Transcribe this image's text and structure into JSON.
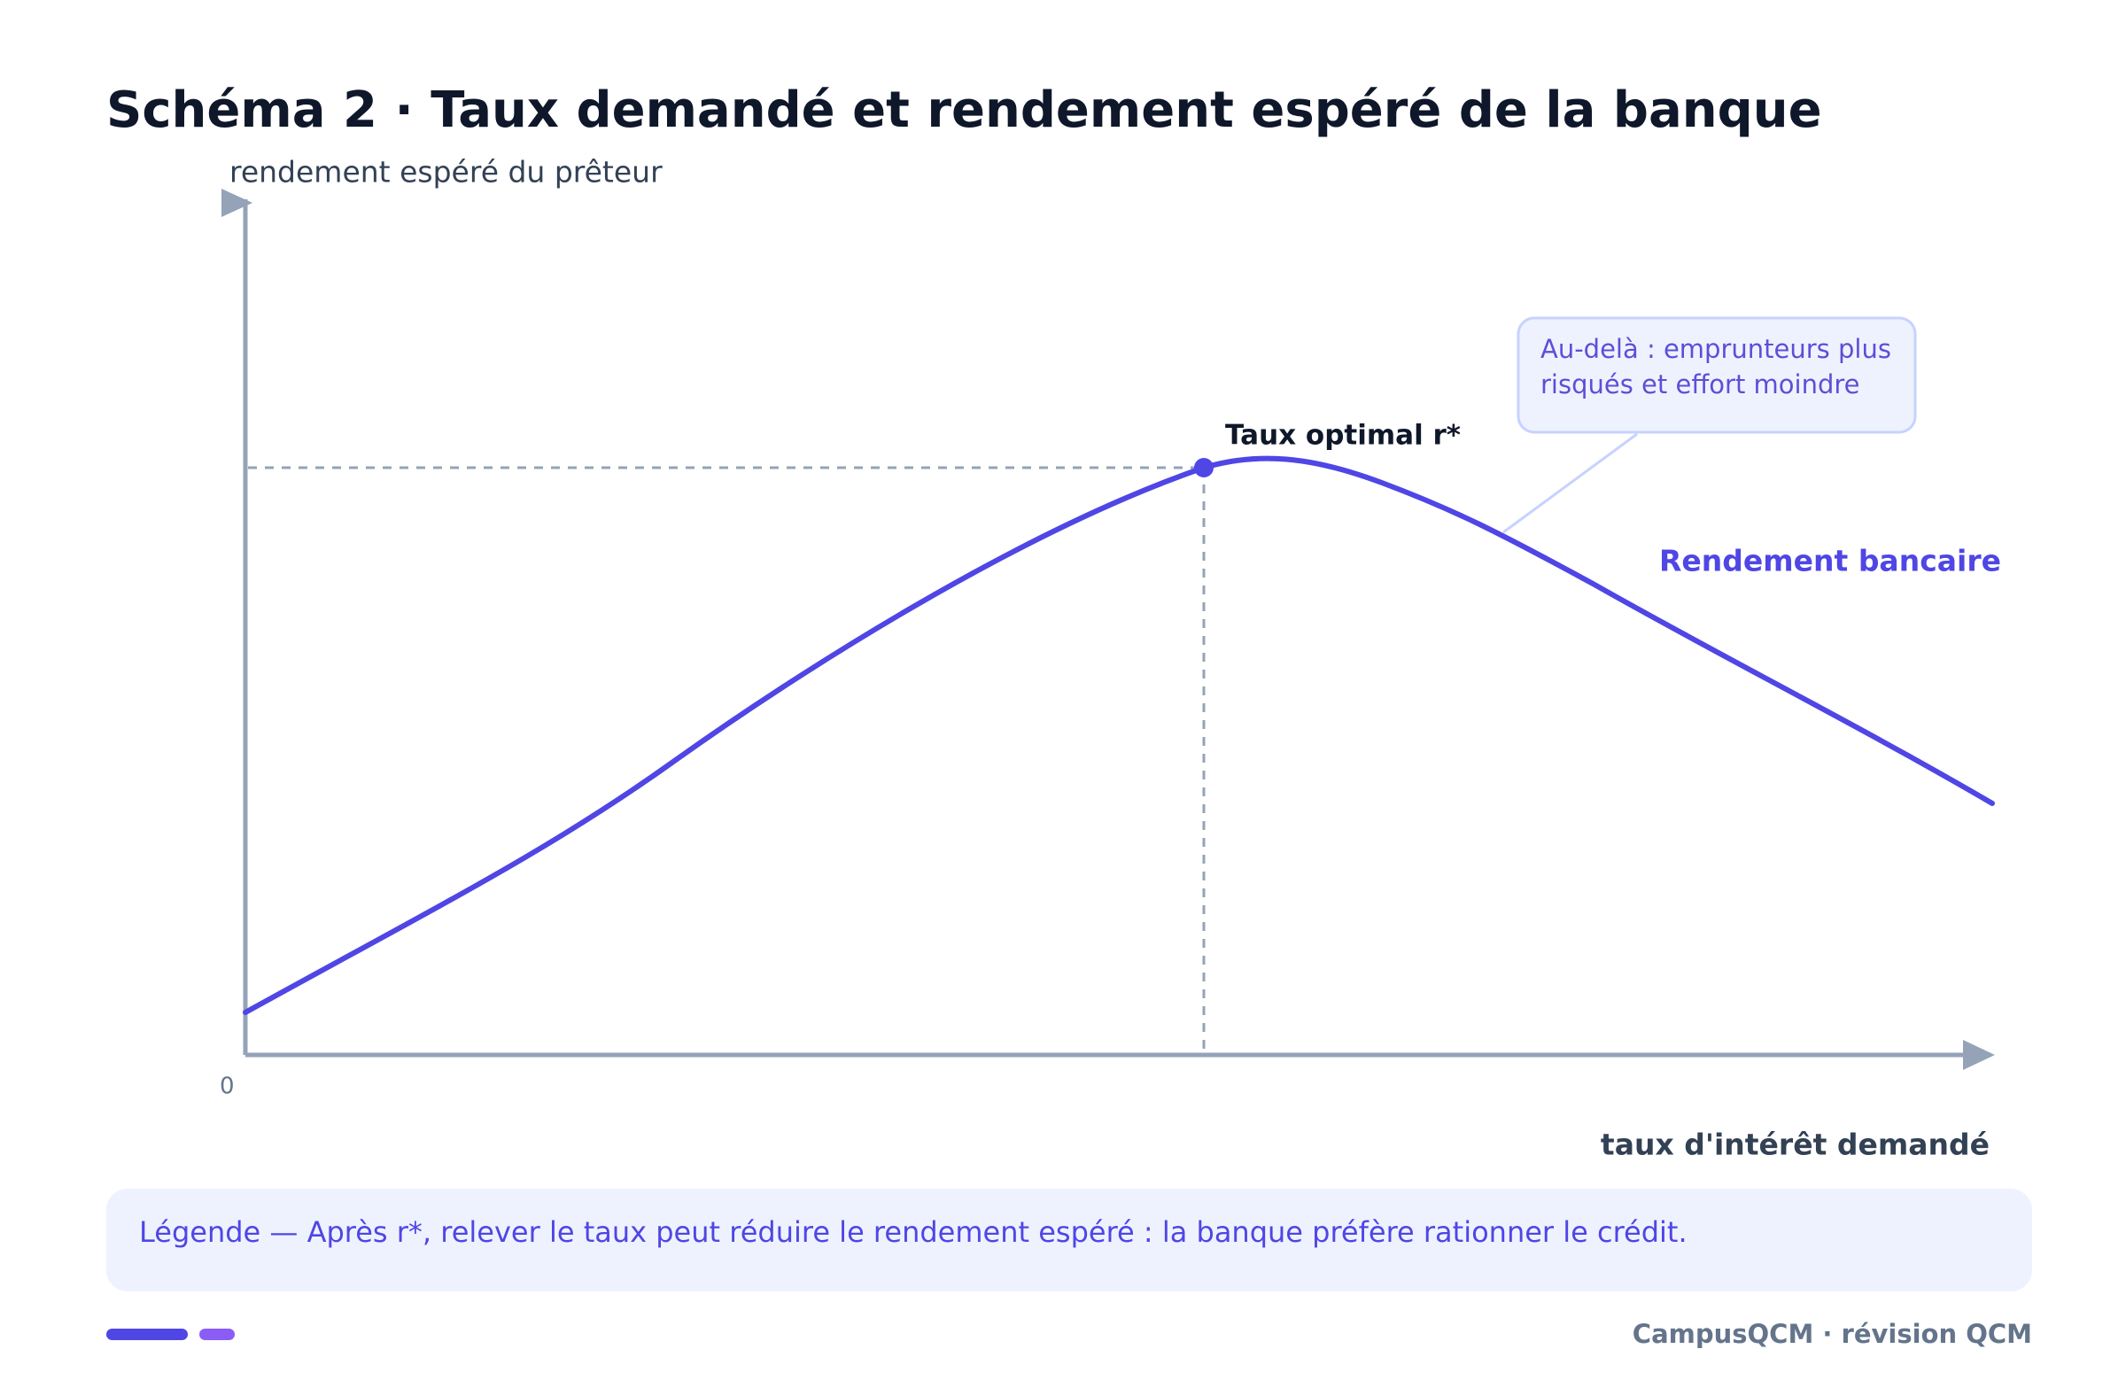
{
  "header": {
    "title": "Schéma 2 · Taux demandé et rendement espéré de la banque"
  },
  "axes": {
    "y_label": "rendement espéré du prêteur",
    "x_label": "taux d'intérêt demandé",
    "origin": "0"
  },
  "annotations": {
    "optimum": "Taux optimal r*",
    "callout": [
      "Au-delà : emprunteurs plus",
      "risqués et effort moindre"
    ],
    "curve_label": "Rendement bancaire"
  },
  "legend": "Légende — Après r*, relever le taux peut réduire le rendement espéré : la banque préfère rationner le crédit.",
  "footer": "CampusQCM · révision QCM"
}
